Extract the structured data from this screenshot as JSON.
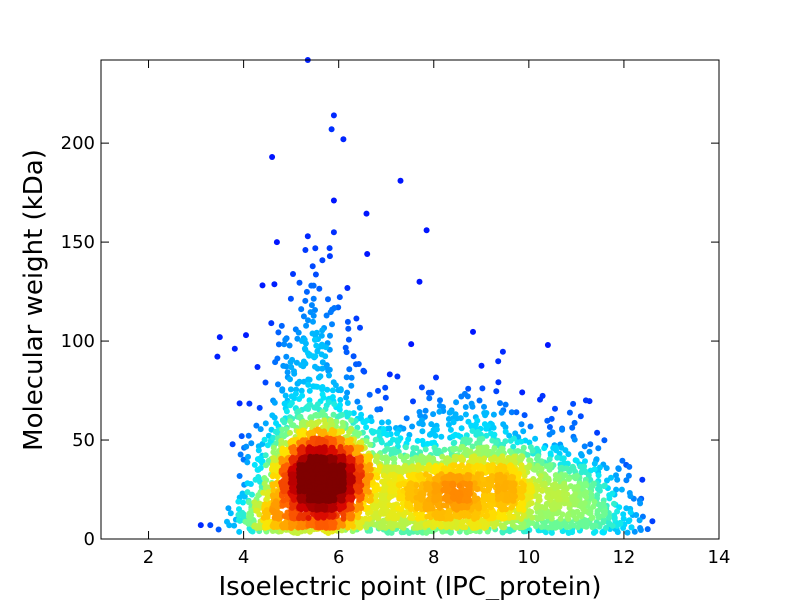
{
  "chart_data": {
    "type": "scatter",
    "title": "",
    "xlabel": "Isoelectric point (IPC_protein)",
    "ylabel": "Molecular weight (kDa)",
    "xlim": [
      1,
      14
    ],
    "ylim": [
      0,
      242
    ],
    "x_ticks": [
      2,
      4,
      6,
      8,
      10,
      12,
      14
    ],
    "y_ticks": [
      0,
      50,
      100,
      150,
      200
    ],
    "grid": false,
    "legend": "none",
    "color_scale": [
      "#00007f",
      "#0000ff",
      "#0080ff",
      "#00e5ff",
      "#80ff80",
      "#ffe500",
      "#ff6000",
      "#d50000",
      "#7f0000"
    ],
    "point_color_meaning": "local point density (jet colormap)",
    "density_peak": {
      "x": 5.6,
      "y": 30
    },
    "outliers": [
      {
        "x": 5.35,
        "y": 242
      },
      {
        "x": 5.9,
        "y": 214
      },
      {
        "x": 5.85,
        "y": 207
      },
      {
        "x": 6.1,
        "y": 202
      },
      {
        "x": 4.6,
        "y": 193
      },
      {
        "x": 7.3,
        "y": 181
      },
      {
        "x": 5.9,
        "y": 171
      },
      {
        "x": 7.85,
        "y": 156
      },
      {
        "x": 5.9,
        "y": 155
      },
      {
        "x": 5.35,
        "y": 153
      },
      {
        "x": 4.7,
        "y": 150
      },
      {
        "x": 5.3,
        "y": 146
      },
      {
        "x": 6.6,
        "y": 144
      },
      {
        "x": 7.7,
        "y": 130
      },
      {
        "x": 3.5,
        "y": 102
      },
      {
        "x": 4.05,
        "y": 103
      },
      {
        "x": 10.4,
        "y": 98
      },
      {
        "x": 11.2,
        "y": 70
      },
      {
        "x": 12.6,
        "y": 9
      },
      {
        "x": 12.5,
        "y": 5
      },
      {
        "x": 12.1,
        "y": 9
      },
      {
        "x": 3.1,
        "y": 7
      },
      {
        "x": 3.3,
        "y": 7
      }
    ],
    "clusters": [
      {
        "cx": 5.6,
        "cy": 30,
        "sx": 0.55,
        "sy": 14,
        "n": 1900
      },
      {
        "cx": 5.5,
        "cy": 45,
        "sx": 0.7,
        "sy": 25,
        "n": 450
      },
      {
        "cx": 5.5,
        "cy": 95,
        "sx": 0.45,
        "sy": 22,
        "n": 110
      },
      {
        "cx": 8.6,
        "cy": 25,
        "sx": 0.9,
        "sy": 13,
        "n": 900
      },
      {
        "cx": 7.2,
        "cy": 25,
        "sx": 0.6,
        "sy": 12,
        "n": 350
      },
      {
        "cx": 9.6,
        "cy": 30,
        "sx": 0.8,
        "sy": 15,
        "n": 450
      },
      {
        "cx": 10.9,
        "cy": 22,
        "sx": 0.6,
        "sy": 12,
        "n": 300
      },
      {
        "cx": 11.6,
        "cy": 10,
        "sx": 0.4,
        "sy": 5,
        "n": 70
      },
      {
        "cx": 8.5,
        "cy": 55,
        "sx": 1.2,
        "sy": 15,
        "n": 160
      },
      {
        "cx": 4.4,
        "cy": 12,
        "sx": 0.3,
        "sy": 7,
        "n": 140
      },
      {
        "cx": 7.8,
        "cy": 8,
        "sx": 1.7,
        "sy": 3,
        "n": 220
      }
    ]
  }
}
